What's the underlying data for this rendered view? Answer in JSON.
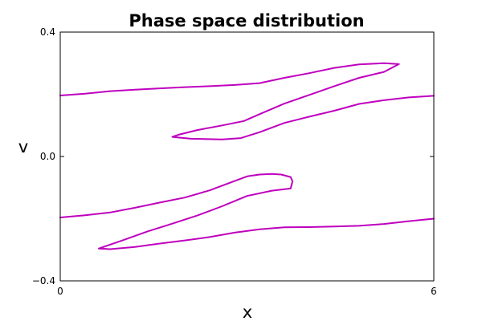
{
  "chart_data": {
    "type": "scatter",
    "title": "Phase space distribution",
    "xlabel": "x",
    "ylabel": "v",
    "xlim": [
      0,
      6
    ],
    "ylim": [
      -0.4,
      0.4
    ],
    "x_ticks": [
      {
        "value": 0,
        "label": "0"
      },
      {
        "value": 6,
        "label": "6"
      }
    ],
    "y_ticks": [
      {
        "value": 0.4,
        "label": "0.4"
      },
      {
        "value": 0.0,
        "label": "0.0"
      },
      {
        "value": -0.4,
        "label": "−0.4"
      }
    ],
    "grid": false,
    "color": "#bf00bf",
    "series": [
      {
        "x": [
          0,
          0.4,
          0.8,
          1.2,
          1.6,
          2.0,
          2.4,
          2.8,
          3.2,
          3.6,
          4.0,
          4.4,
          4.8,
          5.2,
          5.44,
          5.2,
          4.8,
          4.4,
          4.0,
          3.6,
          3.2,
          2.95,
          2.6,
          2.2,
          1.9,
          1.8,
          2.1,
          2.6,
          2.9,
          3.2,
          3.6,
          4.0,
          4.4,
          4.8,
          5.2,
          5.6,
          6.0
        ],
        "y": [
          0.196,
          0.202,
          0.21,
          0.215,
          0.219,
          0.223,
          0.226,
          0.23,
          0.236,
          0.253,
          0.268,
          0.285,
          0.296,
          0.3,
          0.297,
          0.272,
          0.253,
          0.226,
          0.198,
          0.17,
          0.136,
          0.114,
          0.1,
          0.085,
          0.07,
          0.063,
          0.057,
          0.055,
          0.059,
          0.078,
          0.108,
          0.128,
          0.147,
          0.169,
          0.181,
          0.19,
          0.195
        ]
      },
      {
        "x": [
          0,
          0.4,
          0.8,
          1.2,
          1.6,
          2.0,
          2.4,
          2.8,
          3.0,
          3.2,
          3.4,
          3.55,
          3.7,
          3.73,
          3.7,
          3.4,
          3.0,
          2.6,
          2.2,
          1.8,
          1.4,
          1.0,
          0.62,
          0.8,
          1.2,
          1.6,
          2.0,
          2.4,
          2.8,
          3.2,
          3.6,
          4.0,
          4.4,
          4.8,
          5.2,
          5.6,
          6.0
        ],
        "y": [
          -0.196,
          -0.189,
          -0.18,
          -0.165,
          -0.148,
          -0.132,
          -0.109,
          -0.079,
          -0.064,
          -0.058,
          -0.056,
          -0.058,
          -0.066,
          -0.08,
          -0.103,
          -0.11,
          -0.127,
          -0.16,
          -0.19,
          -0.216,
          -0.241,
          -0.27,
          -0.296,
          -0.298,
          -0.291,
          -0.28,
          -0.27,
          -0.259,
          -0.245,
          -0.234,
          -0.228,
          -0.227,
          -0.225,
          -0.223,
          -0.217,
          -0.208,
          -0.2
        ]
      }
    ]
  }
}
